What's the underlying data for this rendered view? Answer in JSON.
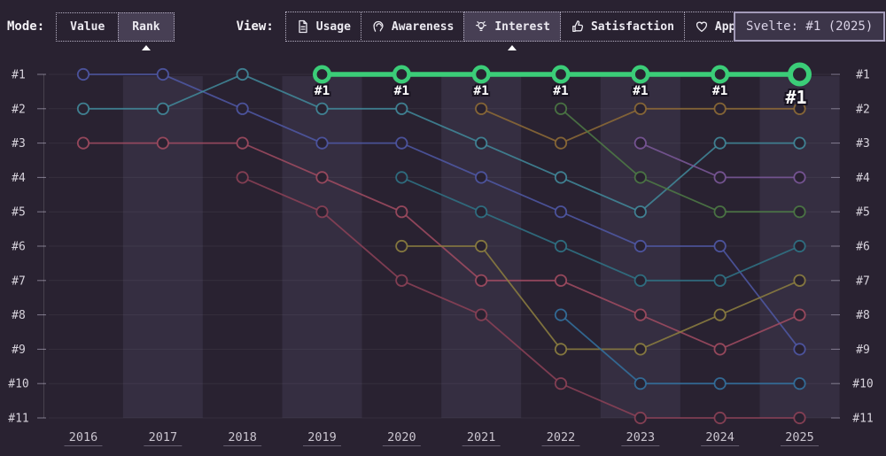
{
  "toolbar": {
    "mode_label": "Mode:",
    "modes": [
      {
        "label": "Value",
        "selected": false
      },
      {
        "label": "Rank",
        "selected": true
      }
    ],
    "view_label": "View:",
    "views": [
      {
        "label": "Usage",
        "icon": "document-icon",
        "selected": false
      },
      {
        "label": "Awareness",
        "icon": "ear-icon",
        "selected": false
      },
      {
        "label": "Interest",
        "icon": "lightbulb-icon",
        "selected": true
      },
      {
        "label": "Satisfaction",
        "icon": "thumbs-up-icon",
        "selected": false
      },
      {
        "label": "Appreciation",
        "icon": "heart-icon",
        "selected": false
      }
    ]
  },
  "tooltip": {
    "text": "Svelte: #1 (2025)"
  },
  "chart_data": {
    "type": "line",
    "subtype": "bump-rank-chart",
    "x": [
      2016,
      2017,
      2018,
      2019,
      2020,
      2021,
      2022,
      2023,
      2024,
      2025
    ],
    "x_tick_labels": [
      "2016",
      "2017",
      "2018",
      "2019",
      "2020",
      "2021",
      "2022",
      "2023",
      "2024",
      "2025"
    ],
    "y_axis": {
      "tick_labels": [
        "#1",
        "#2",
        "#3",
        "#4",
        "#5",
        "#6",
        "#7",
        "#8",
        "#9",
        "#10",
        "#11"
      ],
      "inverted": true,
      "shown_on_both_sides": true
    },
    "grid": true,
    "legend": "none",
    "banded_year_columns": [
      2017,
      2019,
      2021,
      2023,
      2025
    ],
    "colors": {
      "background": "#292231",
      "band": "#352e41",
      "highlight_green": "#3bcd78"
    },
    "series": [
      {
        "name": "series-royal-blue",
        "color": "#4f58a6",
        "highlighted": false,
        "points": [
          [
            2016,
            1
          ],
          [
            2017,
            1
          ],
          [
            2018,
            2
          ],
          [
            2019,
            3
          ],
          [
            2020,
            3
          ],
          [
            2021,
            4
          ],
          [
            2022,
            5
          ],
          [
            2023,
            6
          ],
          [
            2024,
            6
          ],
          [
            2025,
            9
          ]
        ]
      },
      {
        "name": "series-teal",
        "color": "#41899b",
        "highlighted": false,
        "points": [
          [
            2016,
            2
          ],
          [
            2017,
            2
          ],
          [
            2018,
            1
          ],
          [
            2019,
            2
          ],
          [
            2020,
            2
          ],
          [
            2021,
            3
          ],
          [
            2022,
            4
          ],
          [
            2023,
            5
          ],
          [
            2024,
            3
          ],
          [
            2025,
            3
          ]
        ]
      },
      {
        "name": "series-rose",
        "color": "#a14b61",
        "highlighted": false,
        "points": [
          [
            2016,
            3
          ],
          [
            2017,
            3
          ],
          [
            2018,
            3
          ],
          [
            2019,
            4
          ],
          [
            2020,
            5
          ],
          [
            2021,
            7
          ],
          [
            2022,
            7
          ],
          [
            2023,
            8
          ],
          [
            2024,
            9
          ],
          [
            2025,
            8
          ]
        ]
      },
      {
        "name": "series-crimson",
        "color": "#8c4157",
        "highlighted": false,
        "points": [
          [
            2018,
            4
          ],
          [
            2019,
            5
          ],
          [
            2020,
            7
          ],
          [
            2021,
            8
          ],
          [
            2022,
            10
          ],
          [
            2023,
            11
          ],
          [
            2024,
            11
          ],
          [
            2025,
            11
          ]
        ]
      },
      {
        "name": "series-dark-teal",
        "color": "#2f7386",
        "highlighted": false,
        "points": [
          [
            2020,
            4
          ],
          [
            2021,
            5
          ],
          [
            2022,
            6
          ],
          [
            2023,
            7
          ],
          [
            2024,
            7
          ],
          [
            2025,
            6
          ]
        ]
      },
      {
        "name": "series-olive",
        "color": "#8d7f40",
        "highlighted": false,
        "points": [
          [
            2020,
            6
          ],
          [
            2021,
            6
          ],
          [
            2022,
            9
          ],
          [
            2023,
            9
          ],
          [
            2024,
            8
          ],
          [
            2025,
            7
          ]
        ]
      },
      {
        "name": "series-brown",
        "color": "#8e6b36",
        "highlighted": false,
        "points": [
          [
            2021,
            2
          ],
          [
            2022,
            3
          ],
          [
            2023,
            2
          ],
          [
            2024,
            2
          ],
          [
            2025,
            2
          ]
        ]
      },
      {
        "name": "series-dark-green",
        "color": "#4d7a45",
        "highlighted": false,
        "points": [
          [
            2022,
            2
          ],
          [
            2023,
            4
          ],
          [
            2024,
            5
          ],
          [
            2025,
            5
          ]
        ]
      },
      {
        "name": "series-steel-blue",
        "color": "#33719f",
        "highlighted": false,
        "points": [
          [
            2022,
            8
          ],
          [
            2023,
            10
          ],
          [
            2024,
            10
          ],
          [
            2025,
            10
          ]
        ]
      },
      {
        "name": "series-purple",
        "color": "#7b589a",
        "highlighted": false,
        "points": [
          [
            2023,
            3
          ],
          [
            2024,
            4
          ],
          [
            2025,
            4
          ]
        ]
      },
      {
        "name": "svelte",
        "color": "#3bcd78",
        "highlighted": true,
        "label_under_points": "#1",
        "points": [
          [
            2019,
            1
          ],
          [
            2020,
            1
          ],
          [
            2021,
            1
          ],
          [
            2022,
            1
          ],
          [
            2023,
            1
          ],
          [
            2024,
            1
          ],
          [
            2025,
            1
          ]
        ]
      }
    ]
  }
}
